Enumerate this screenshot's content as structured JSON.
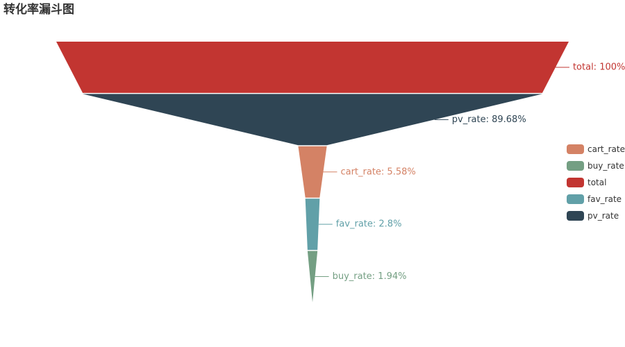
{
  "chart_data": {
    "type": "funnel",
    "title": "转化率漏斗图",
    "max": 100,
    "sort": "descending",
    "stages": [
      {
        "name": "total",
        "value": 100,
        "label": "total: 100%",
        "color": "#c23531"
      },
      {
        "name": "pv_rate",
        "value": 89.68,
        "label": "pv_rate: 89.68%",
        "color": "#2f4554"
      },
      {
        "name": "cart_rate",
        "value": 5.58,
        "label": "cart_rate: 5.58%",
        "color": "#d48265"
      },
      {
        "name": "fav_rate",
        "value": 2.8,
        "label": "fav_rate: 2.8%",
        "color": "#61a0a8"
      },
      {
        "name": "buy_rate",
        "value": 1.94,
        "label": "buy_rate: 1.94%",
        "color": "#749f83"
      }
    ],
    "legend": {
      "position": "right",
      "items": [
        {
          "name": "cart_rate",
          "color": "#d48265"
        },
        {
          "name": "buy_rate",
          "color": "#749f83"
        },
        {
          "name": "total",
          "color": "#c23531"
        },
        {
          "name": "fav_rate",
          "color": "#61a0a8"
        },
        {
          "name": "pv_rate",
          "color": "#2f4554"
        }
      ]
    }
  }
}
